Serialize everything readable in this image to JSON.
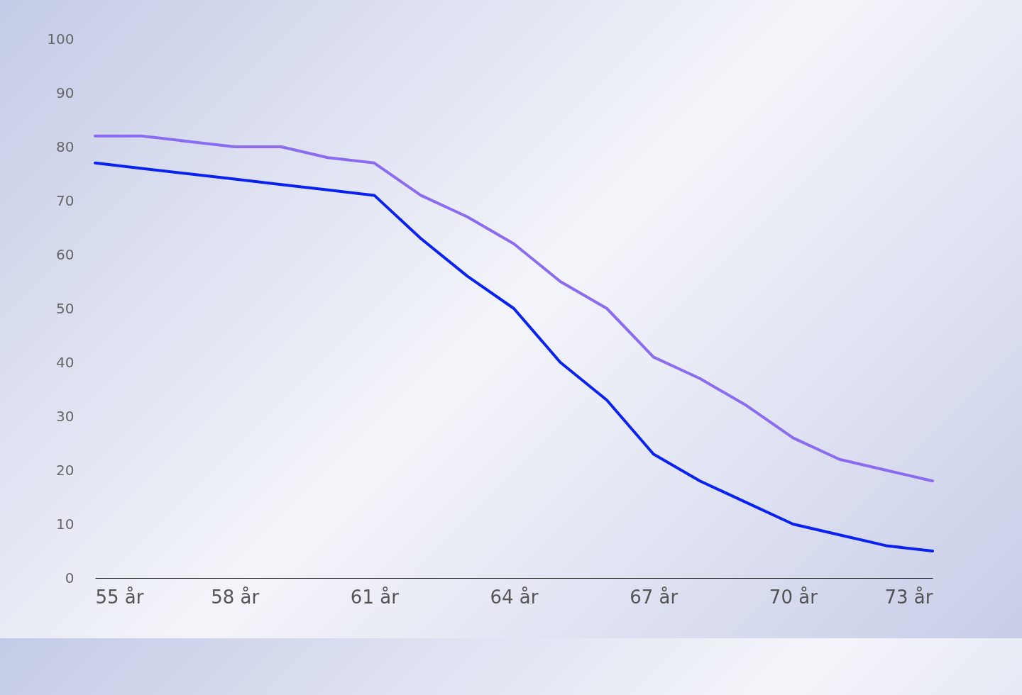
{
  "chart_data": {
    "type": "line",
    "x": [
      55,
      56,
      57,
      58,
      59,
      60,
      61,
      62,
      63,
      64,
      65,
      66,
      67,
      68,
      69,
      70,
      71,
      72,
      73
    ],
    "series": [
      {
        "color": "#8b6cf0",
        "values": [
          82,
          82,
          81,
          80,
          80,
          78,
          77,
          71,
          67,
          62,
          55,
          50,
          41,
          37,
          32,
          26,
          22,
          20,
          18
        ]
      },
      {
        "color": "#0a22f0",
        "values": [
          77,
          76,
          75,
          74,
          73,
          72,
          71,
          63,
          56,
          50,
          40,
          33,
          23,
          18,
          14,
          10,
          8,
          6,
          5
        ]
      }
    ],
    "xlim": [
      55,
      73
    ],
    "xticks": [
      {
        "value": 55,
        "label": "55 år"
      },
      {
        "value": 58,
        "label": "58 år"
      },
      {
        "value": 61,
        "label": "61 år"
      },
      {
        "value": 64,
        "label": "64 år"
      },
      {
        "value": 67,
        "label": "67 år"
      },
      {
        "value": 70,
        "label": "70 år"
      },
      {
        "value": 73,
        "label": "73 år"
      }
    ],
    "ylim": [
      0,
      100
    ],
    "yticks": [
      0,
      10,
      20,
      30,
      40,
      50,
      60,
      70,
      80,
      90,
      100
    ],
    "grid": false,
    "marker": "none",
    "line_style": "solid"
  }
}
